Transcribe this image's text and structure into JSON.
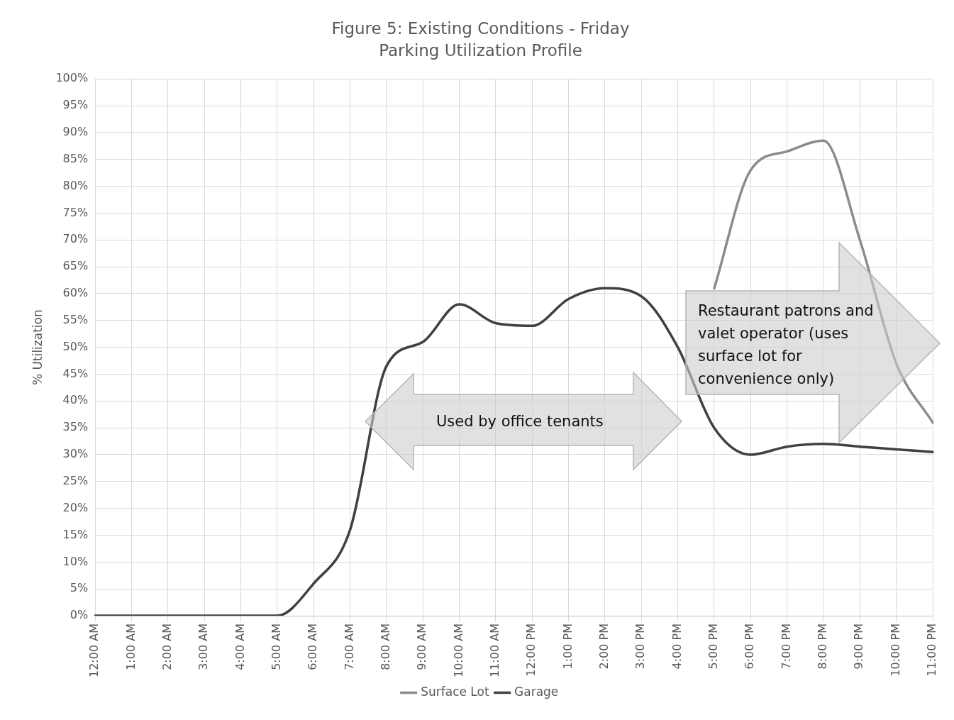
{
  "chart_data": {
    "type": "line",
    "title": "Figure 5: Existing Conditions - Friday",
    "subtitle": "Parking Utilization Profile",
    "ylabel": "% Utilization",
    "categories": [
      "12:00 AM",
      "1:00 AM",
      "2:00 AM",
      "3:00 AM",
      "4:00 AM",
      "5:00 AM",
      "6:00 AM",
      "7:00 AM",
      "8:00 AM",
      "9:00 AM",
      "10:00 AM",
      "11:00 AM",
      "12:00 PM",
      "1:00 PM",
      "2:00 PM",
      "3:00 PM",
      "4:00 PM",
      "5:00 PM",
      "6:00 PM",
      "7:00 PM",
      "8:00 PM",
      "9:00 PM",
      "10:00 PM",
      "11:00 PM"
    ],
    "series": [
      {
        "name": "Surface Lot",
        "color": "#8c8c8c",
        "values": [
          null,
          null,
          null,
          null,
          null,
          null,
          null,
          null,
          null,
          null,
          null,
          null,
          null,
          null,
          null,
          null,
          null,
          61,
          83,
          86.5,
          88.5,
          70,
          47,
          36
        ]
      },
      {
        "name": "Garage",
        "color": "#404040",
        "values": [
          0,
          0,
          0,
          0,
          0,
          0,
          6,
          16,
          46.5,
          51,
          58,
          54.5,
          54,
          59,
          61,
          59.5,
          50,
          35,
          30,
          31.5,
          32,
          31.5,
          31,
          30.5
        ]
      }
    ],
    "ylim": [
      0,
      100
    ],
    "yticks": [
      {
        "value": 0,
        "label": "0%"
      },
      {
        "value": 5,
        "label": "5%"
      },
      {
        "value": 10,
        "label": "10%"
      },
      {
        "value": 15,
        "label": "15%"
      },
      {
        "value": 20,
        "label": "20%"
      },
      {
        "value": 25,
        "label": "25%"
      },
      {
        "value": 30,
        "label": "30%"
      },
      {
        "value": 35,
        "label": "35%"
      },
      {
        "value": 40,
        "label": "40%"
      },
      {
        "value": 45,
        "label": "45%"
      },
      {
        "value": 50,
        "label": "50%"
      },
      {
        "value": 55,
        "label": "55%"
      },
      {
        "value": 60,
        "label": "60%"
      },
      {
        "value": 65,
        "label": "65%"
      },
      {
        "value": 70,
        "label": "70%"
      },
      {
        "value": 75,
        "label": "75%"
      },
      {
        "value": 80,
        "label": "80%"
      },
      {
        "value": 85,
        "label": "85%"
      },
      {
        "value": 90,
        "label": "90%"
      },
      {
        "value": 95,
        "label": "95%"
      },
      {
        "value": 100,
        "label": "100%"
      }
    ],
    "annotations": [
      "Used by office tenants",
      "Restaurant patrons and valet operator (uses surface lot for convenience only)"
    ],
    "grid": true,
    "legend": "bottom",
    "marker": "none",
    "line_style": "solid"
  }
}
